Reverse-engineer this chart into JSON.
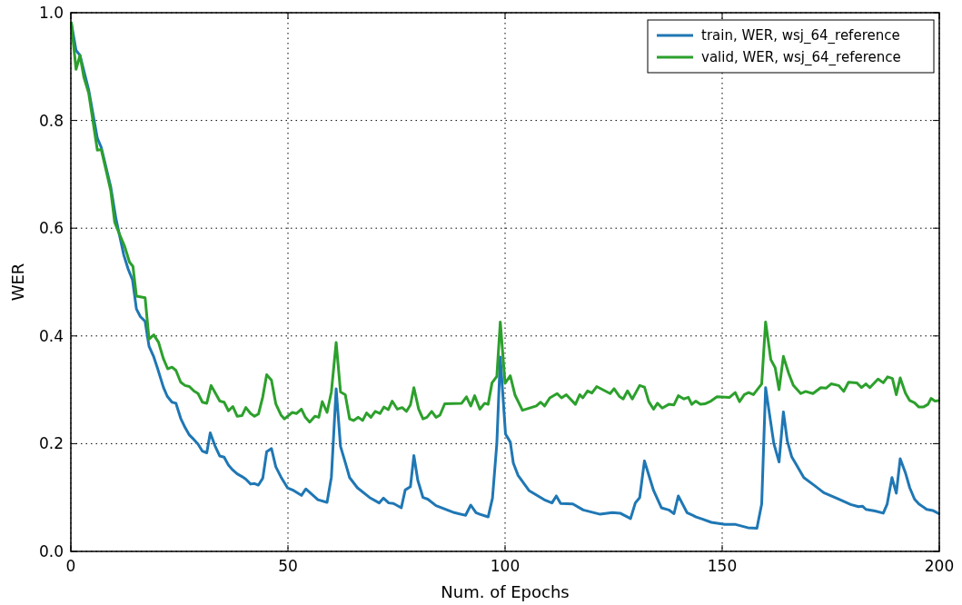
{
  "chart_data": {
    "type": "line",
    "xlabel": "Num. of Epochs",
    "ylabel": "WER",
    "xlim": [
      0,
      200
    ],
    "ylim": [
      0,
      1
    ],
    "xticks": [
      0,
      50,
      100,
      150,
      200
    ],
    "yticks": [
      {
        "value": 0,
        "label": "0.0"
      },
      {
        "value": 0.2,
        "label": "0.2"
      },
      {
        "value": 0.4,
        "label": "0.4"
      },
      {
        "value": 0.6,
        "label": "0.6"
      },
      {
        "value": 0.8,
        "label": "0.8"
      },
      {
        "value": 1,
        "label": "1.0"
      }
    ],
    "grid": true,
    "legend": "top right",
    "line_style": "solid",
    "marker": "none",
    "series": [
      {
        "name": "train, WER, wsj_64_reference",
        "color": "#1f77b4",
        "x": [
          0.1,
          1.2,
          2.1,
          4.1,
          6.1,
          7,
          9.2,
          10.4,
          12.2,
          13.2,
          14.2,
          15.1,
          16,
          17.1,
          18,
          19.1,
          20,
          21.3,
          22.2,
          23.3,
          24.2,
          25.3,
          26.3,
          27.3,
          28.3,
          29.3,
          30.3,
          31.3,
          32.1,
          33.2,
          34.3,
          35.3,
          36.3,
          37.3,
          38.3,
          39.4,
          40.3,
          41.4,
          42.3,
          43.2,
          44.2,
          45.1,
          46.2,
          47.2,
          48.4,
          49.9,
          51.3,
          53.1,
          54.1,
          56.9,
          59,
          60,
          61.1,
          62.1,
          63.2,
          64.2,
          66,
          68.8,
          71,
          72,
          73.2,
          74.3,
          76.1,
          77,
          78.2,
          79,
          79.9,
          81.1,
          82.2,
          84.1,
          88.3,
          90.9,
          92.1,
          93.3,
          94.2,
          96.1,
          97.1,
          98.1,
          98.9,
          100.1,
          101.2,
          101.9,
          103,
          105.5,
          109,
          110.8,
          111.8,
          112.8,
          115.6,
          118,
          121.9,
          124.7,
          126.5,
          128.9,
          130,
          131,
          132.1,
          134.2,
          136,
          137.7,
          138.9,
          139.9,
          141.9,
          144,
          145.4,
          147.5,
          150.6,
          153.1,
          155.9,
          158,
          159.1,
          160,
          161.9,
          163.1,
          164.1,
          165,
          166,
          168.8,
          171.3,
          173.4,
          176.8,
          179.6,
          181.4,
          182.3,
          183.1,
          185.2,
          187.1,
          188,
          189.1,
          190.1,
          191,
          192.2,
          193.2,
          194.3,
          195.3,
          197.1,
          198.5,
          199.9
        ],
        "values": [
          0.981,
          0.93,
          0.921,
          0.857,
          0.767,
          0.75,
          0.676,
          0.617,
          0.55,
          0.524,
          0.504,
          0.45,
          0.436,
          0.427,
          0.381,
          0.361,
          0.339,
          0.305,
          0.288,
          0.277,
          0.275,
          0.247,
          0.23,
          0.216,
          0.208,
          0.199,
          0.186,
          0.183,
          0.22,
          0.196,
          0.177,
          0.175,
          0.16,
          0.151,
          0.144,
          0.139,
          0.134,
          0.125,
          0.126,
          0.123,
          0.136,
          0.185,
          0.191,
          0.157,
          0.138,
          0.118,
          0.113,
          0.104,
          0.116,
          0.096,
          0.091,
          0.138,
          0.302,
          0.195,
          0.165,
          0.137,
          0.118,
          0.1,
          0.09,
          0.099,
          0.09,
          0.089,
          0.081,
          0.114,
          0.12,
          0.178,
          0.132,
          0.1,
          0.097,
          0.085,
          0.072,
          0.067,
          0.086,
          0.072,
          0.069,
          0.064,
          0.099,
          0.2,
          0.361,
          0.218,
          0.203,
          0.164,
          0.141,
          0.113,
          0.096,
          0.09,
          0.103,
          0.089,
          0.088,
          0.077,
          0.069,
          0.072,
          0.071,
          0.061,
          0.09,
          0.1,
          0.168,
          0.113,
          0.081,
          0.077,
          0.07,
          0.103,
          0.072,
          0.064,
          0.06,
          0.054,
          0.05,
          0.05,
          0.044,
          0.043,
          0.088,
          0.304,
          0.2,
          0.166,
          0.259,
          0.205,
          0.176,
          0.137,
          0.122,
          0.109,
          0.097,
          0.087,
          0.083,
          0.084,
          0.078,
          0.075,
          0.071,
          0.088,
          0.137,
          0.108,
          0.172,
          0.146,
          0.118,
          0.097,
          0.088,
          0.078,
          0.076,
          0.07
        ]
      },
      {
        "name": "valid, WER, wsj_64_reference",
        "color": "#2ca02c",
        "x": [
          0.1,
          1.2,
          2.1,
          3,
          4.1,
          5.2,
          6.1,
          7,
          8.1,
          9.2,
          10.1,
          11.4,
          12.4,
          13.5,
          14.3,
          15.1,
          17.1,
          18,
          19.1,
          20.2,
          21.3,
          22.3,
          23.3,
          24.2,
          25.3,
          26.3,
          27.3,
          28.3,
          29.3,
          30.3,
          31.3,
          32.3,
          33.2,
          34.3,
          35.3,
          36.3,
          37.3,
          38.3,
          39.4,
          40.3,
          41.4,
          42.3,
          43.2,
          44.2,
          45.1,
          46.2,
          47.2,
          48.4,
          49.2,
          51,
          52,
          53.1,
          54,
          55,
          56.2,
          57.1,
          57.9,
          59,
          60,
          61.1,
          62.1,
          63.2,
          64.2,
          65.1,
          66.2,
          67.2,
          68.1,
          69.1,
          70.1,
          71.2,
          72.1,
          73.1,
          74,
          75.2,
          76.3,
          77.3,
          78.2,
          79,
          80.1,
          81.1,
          82,
          83.1,
          84.1,
          85,
          86.1,
          90,
          91.1,
          92.1,
          93,
          94.2,
          95.3,
          96.1,
          97,
          98.1,
          98.9,
          100,
          101.2,
          102.3,
          104,
          107.2,
          108.2,
          109.1,
          110.3,
          112,
          113,
          114.1,
          116.2,
          117.2,
          117.9,
          119,
          120,
          121.1,
          124.2,
          125.1,
          126.3,
          127.2,
          128.2,
          129.3,
          131,
          132.1,
          133.1,
          134.2,
          135.1,
          136.2,
          137.7,
          138.9,
          139.9,
          141.2,
          142.2,
          143,
          143.9,
          145,
          146,
          147.4,
          148.8,
          151.7,
          153,
          154,
          155.1,
          156.1,
          157.2,
          159.1,
          160,
          161.2,
          162.2,
          163.1,
          164.1,
          165.3,
          166.4,
          168.1,
          169.2,
          170.9,
          172.7,
          173.9,
          175.1,
          176.8,
          178,
          179.1,
          181,
          182.1,
          183.1,
          184,
          185.9,
          187.1,
          188.1,
          189.2,
          190.1,
          191,
          192.2,
          193.2,
          194.3,
          195.3,
          196.3,
          197.4,
          198.1,
          199,
          199.9
        ],
        "values": [
          0.981,
          0.895,
          0.921,
          0.88,
          0.851,
          0.793,
          0.745,
          0.746,
          0.708,
          0.669,
          0.611,
          0.585,
          0.566,
          0.537,
          0.529,
          0.474,
          0.471,
          0.394,
          0.402,
          0.388,
          0.358,
          0.339,
          0.342,
          0.336,
          0.314,
          0.308,
          0.306,
          0.298,
          0.293,
          0.277,
          0.275,
          0.308,
          0.295,
          0.279,
          0.277,
          0.261,
          0.269,
          0.251,
          0.252,
          0.267,
          0.256,
          0.251,
          0.255,
          0.287,
          0.328,
          0.318,
          0.274,
          0.253,
          0.246,
          0.258,
          0.256,
          0.264,
          0.249,
          0.24,
          0.251,
          0.249,
          0.278,
          0.258,
          0.296,
          0.388,
          0.296,
          0.291,
          0.246,
          0.243,
          0.249,
          0.243,
          0.257,
          0.249,
          0.26,
          0.256,
          0.268,
          0.263,
          0.279,
          0.264,
          0.267,
          0.26,
          0.272,
          0.304,
          0.264,
          0.246,
          0.249,
          0.26,
          0.249,
          0.253,
          0.274,
          0.275,
          0.287,
          0.27,
          0.289,
          0.264,
          0.275,
          0.273,
          0.313,
          0.325,
          0.426,
          0.312,
          0.326,
          0.29,
          0.262,
          0.27,
          0.277,
          0.27,
          0.285,
          0.293,
          0.285,
          0.291,
          0.273,
          0.291,
          0.285,
          0.298,
          0.294,
          0.306,
          0.293,
          0.302,
          0.288,
          0.283,
          0.298,
          0.283,
          0.308,
          0.305,
          0.278,
          0.264,
          0.275,
          0.266,
          0.273,
          0.272,
          0.289,
          0.283,
          0.286,
          0.273,
          0.279,
          0.273,
          0.274,
          0.279,
          0.287,
          0.286,
          0.295,
          0.278,
          0.291,
          0.295,
          0.291,
          0.311,
          0.426,
          0.356,
          0.341,
          0.3,
          0.362,
          0.331,
          0.308,
          0.293,
          0.297,
          0.293,
          0.304,
          0.303,
          0.311,
          0.308,
          0.297,
          0.314,
          0.313,
          0.304,
          0.311,
          0.304,
          0.32,
          0.313,
          0.324,
          0.321,
          0.291,
          0.322,
          0.294,
          0.28,
          0.276,
          0.268,
          0.268,
          0.273,
          0.284,
          0.279,
          0.28
        ]
      }
    ]
  }
}
